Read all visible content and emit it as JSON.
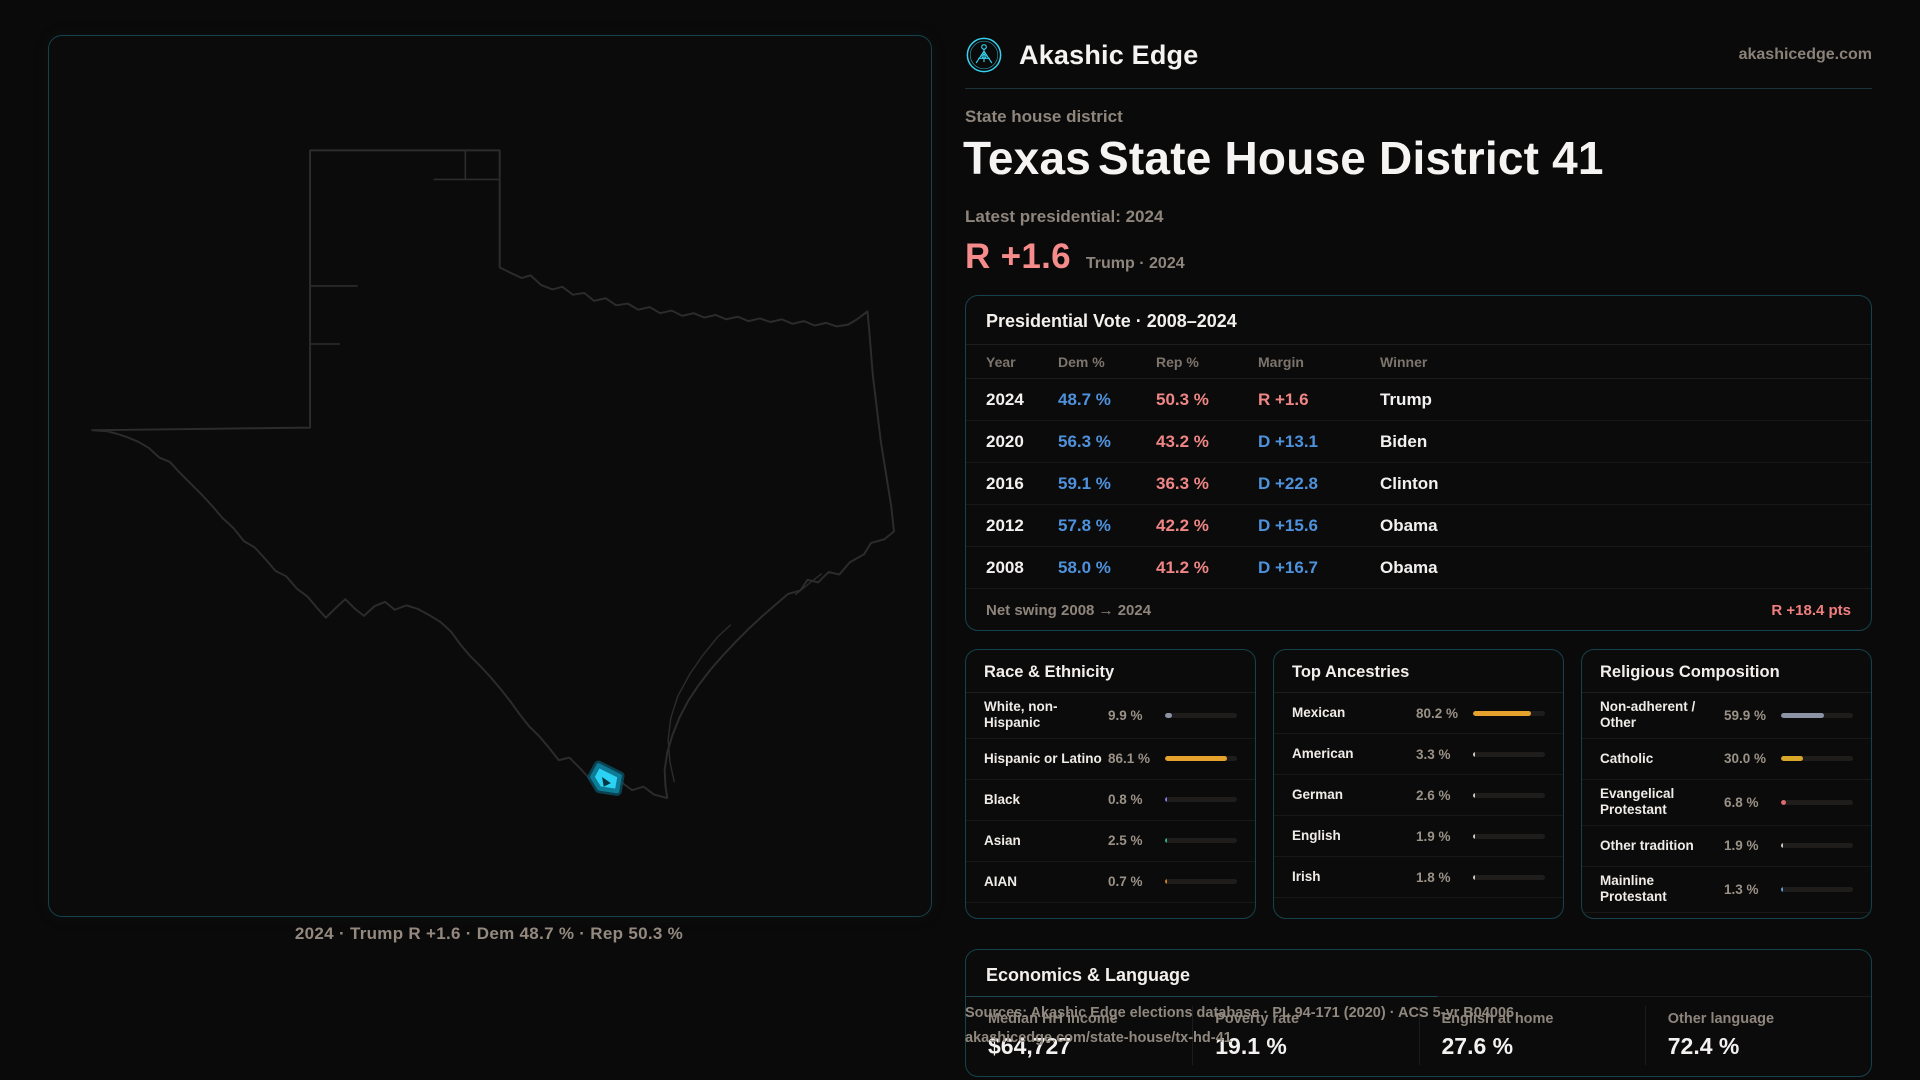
{
  "brand": {
    "name": "Akashic Edge",
    "domain": "akashicedge.com"
  },
  "header": {
    "eyebrow": "State house district",
    "title_state": "Texas",
    "title_rest": "State House District 41",
    "latest_label": "Latest presidential: 2024",
    "headline_margin": "R +1.6",
    "headline_detail": "Trump · 2024"
  },
  "map": {
    "caption": "2024 · Trump R +1.6 · Dem 48.7 % · Rep 50.3 %",
    "district_color": "#2bd2f3"
  },
  "vote_table": {
    "title": "Presidential Vote · 2008–2024",
    "columns": [
      "Year",
      "Dem %",
      "Rep %",
      "Margin",
      "Winner"
    ],
    "rows": [
      {
        "year": "2024",
        "dem": "48.7 %",
        "rep": "50.3 %",
        "margin": "R +1.6",
        "margin_party": "R",
        "winner": "Trump"
      },
      {
        "year": "2020",
        "dem": "56.3 %",
        "rep": "43.2 %",
        "margin": "D +13.1",
        "margin_party": "D",
        "winner": "Biden"
      },
      {
        "year": "2016",
        "dem": "59.1 %",
        "rep": "36.3 %",
        "margin": "D +22.8",
        "margin_party": "D",
        "winner": "Clinton"
      },
      {
        "year": "2012",
        "dem": "57.8 %",
        "rep": "42.2 %",
        "margin": "D +15.6",
        "margin_party": "D",
        "winner": "Obama"
      },
      {
        "year": "2008",
        "dem": "58.0 %",
        "rep": "41.2 %",
        "margin": "D +16.7",
        "margin_party": "D",
        "winner": "Obama"
      }
    ],
    "footer_label": "Net swing 2008 → 2024",
    "footer_value": "R +18.4 pts"
  },
  "chart_data": {
    "type": "table",
    "title": "Presidential Vote · 2008–2024",
    "categories": [
      2024,
      2020,
      2016,
      2012,
      2008
    ],
    "series": [
      {
        "name": "Dem %",
        "values": [
          48.7,
          56.3,
          59.1,
          57.8,
          58.0
        ]
      },
      {
        "name": "Rep %",
        "values": [
          50.3,
          43.2,
          36.3,
          42.2,
          41.2
        ]
      }
    ],
    "net_swing_2008_2024": "R +18.4 pts"
  },
  "panels": [
    {
      "title": "Race & Ethnicity",
      "rows": [
        {
          "label": "White, non-Hispanic",
          "value": "9.9 %",
          "pct": 9.9,
          "color": "#8b93a4"
        },
        {
          "label": "Hispanic or Latino",
          "value": "86.1 %",
          "pct": 86.1,
          "color": "#e5a32e"
        },
        {
          "label": "Black",
          "value": "0.8 %",
          "pct": 0.8,
          "color": "#8678e0"
        },
        {
          "label": "Asian",
          "value": "2.5 %",
          "pct": 2.5,
          "color": "#2fae7e"
        },
        {
          "label": "AIAN",
          "value": "0.7 %",
          "pct": 0.7,
          "color": "#cd7d2e"
        }
      ]
    },
    {
      "title": "Top Ancestries",
      "rows": [
        {
          "label": "Mexican",
          "value": "80.2 %",
          "pct": 80.2,
          "color": "#e5a32e"
        },
        {
          "label": "American",
          "value": "3.3 %",
          "pct": 3.3,
          "color": "#cfcbc7"
        },
        {
          "label": "German",
          "value": "2.6 %",
          "pct": 2.6,
          "color": "#cfcbc7"
        },
        {
          "label": "English",
          "value": "1.9 %",
          "pct": 1.9,
          "color": "#cfcbc7"
        },
        {
          "label": "Irish",
          "value": "1.8 %",
          "pct": 1.8,
          "color": "#cfcbc7"
        }
      ]
    },
    {
      "title": "Religious Composition",
      "rows": [
        {
          "label": "Non-adherent / Other",
          "value": "59.9 %",
          "pct": 59.9,
          "color": "#8b93a4"
        },
        {
          "label": "Catholic",
          "value": "30.0 %",
          "pct": 30.0,
          "color": "#d9a82a"
        },
        {
          "label": "Evangelical Protestant",
          "value": "6.8 %",
          "pct": 6.8,
          "color": "#e06a6a"
        },
        {
          "label": "Other tradition",
          "value": "1.9 %",
          "pct": 1.9,
          "color": "#cfcbc7"
        },
        {
          "label": "Mainline Protestant",
          "value": "1.3 %",
          "pct": 1.3,
          "color": "#5b9bd1"
        }
      ]
    }
  ],
  "economics": {
    "title": "Economics & Language",
    "stats": [
      {
        "label": "Median HH income",
        "value": "$64,727"
      },
      {
        "label": "Poverty rate",
        "value": "19.1 %"
      },
      {
        "label": "English at home",
        "value": "27.6 %"
      },
      {
        "label": "Other language",
        "value": "72.4 %"
      }
    ]
  },
  "footer": {
    "sources_line1": "Sources: Akashic Edge elections database · PL 94-171 (2020) · ACS 5-yr B04006",
    "sources_line2": "akashicedge.com/state-house/tx-hd-41"
  },
  "colors": {
    "accent_cyan": "#2bd2f3",
    "dem_blue": "#4e91dc",
    "rep_red": "#ef8585",
    "headline_red": "#f58b8b",
    "muted_tan": "#8e857c",
    "card_border": "#15424c"
  }
}
